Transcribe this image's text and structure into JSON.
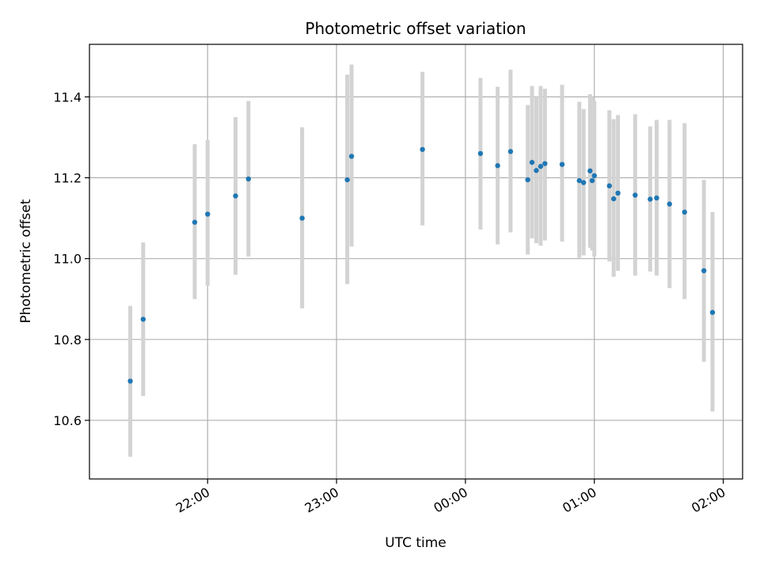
{
  "chart_data": {
    "type": "scatter",
    "title": "Photometric offset variation",
    "xlabel": "UTC time",
    "ylabel": "Photometric offset",
    "x_unit": "UTC time (HH:MM)",
    "xlim": [
      "21:05",
      "02:09"
    ],
    "ylim": [
      10.455,
      11.53
    ],
    "yticks": [
      10.6,
      10.8,
      11.0,
      11.2,
      11.4
    ],
    "ytick_labels": [
      "10.6",
      "10.8",
      "11.0",
      "11.2",
      "11.4"
    ],
    "xticks": [
      "22:00",
      "23:00",
      "00:00",
      "01:00",
      "02:00"
    ],
    "xtick_labels": [
      "22:00",
      "23:00",
      "00:00",
      "01:00",
      "02:00"
    ],
    "grid": true,
    "marker_color": "#1f77b4",
    "errorbar_color": "#d3d3d3",
    "points": [
      {
        "t": "21:24",
        "y": 10.697,
        "lo": 10.51,
        "hi": 10.883
      },
      {
        "t": "21:30",
        "y": 10.85,
        "lo": 10.66,
        "hi": 11.04
      },
      {
        "t": "21:54",
        "y": 11.09,
        "lo": 10.9,
        "hi": 11.283
      },
      {
        "t": "22:00",
        "y": 11.11,
        "lo": 10.933,
        "hi": 11.293
      },
      {
        "t": "22:13",
        "y": 11.155,
        "lo": 10.96,
        "hi": 11.35
      },
      {
        "t": "22:19",
        "y": 11.197,
        "lo": 11.005,
        "hi": 11.39
      },
      {
        "t": "22:44",
        "y": 11.1,
        "lo": 10.877,
        "hi": 11.325
      },
      {
        "t": "23:05",
        "y": 11.195,
        "lo": 10.937,
        "hi": 11.455
      },
      {
        "t": "23:07",
        "y": 11.253,
        "lo": 11.03,
        "hi": 11.48
      },
      {
        "t": "23:40",
        "y": 11.27,
        "lo": 11.082,
        "hi": 11.462
      },
      {
        "t": "00:07",
        "y": 11.26,
        "lo": 11.072,
        "hi": 11.447
      },
      {
        "t": "00:15",
        "y": 11.23,
        "lo": 11.035,
        "hi": 11.425
      },
      {
        "t": "00:21",
        "y": 11.265,
        "lo": 11.065,
        "hi": 11.467
      },
      {
        "t": "00:29",
        "y": 11.195,
        "lo": 11.01,
        "hi": 11.38
      },
      {
        "t": "00:31",
        "y": 11.238,
        "lo": 11.05,
        "hi": 11.427
      },
      {
        "t": "00:33",
        "y": 11.218,
        "lo": 11.038,
        "hi": 11.4
      },
      {
        "t": "00:35",
        "y": 11.228,
        "lo": 11.032,
        "hi": 11.427
      },
      {
        "t": "00:37",
        "y": 11.235,
        "lo": 11.045,
        "hi": 11.42
      },
      {
        "t": "00:45",
        "y": 11.233,
        "lo": 11.042,
        "hi": 11.43
      },
      {
        "t": "00:53",
        "y": 11.193,
        "lo": 11.002,
        "hi": 11.388
      },
      {
        "t": "00:55",
        "y": 11.188,
        "lo": 11.008,
        "hi": 11.37
      },
      {
        "t": "00:58",
        "y": 11.217,
        "lo": 11.027,
        "hi": 11.407
      },
      {
        "t": "00:59",
        "y": 11.193,
        "lo": 11.02,
        "hi": 11.4
      },
      {
        "t": "01:00",
        "y": 11.205,
        "lo": 11.005,
        "hi": 11.39
      },
      {
        "t": "01:07",
        "y": 11.18,
        "lo": 10.993,
        "hi": 11.367
      },
      {
        "t": "01:09",
        "y": 11.148,
        "lo": 10.955,
        "hi": 11.345
      },
      {
        "t": "01:11",
        "y": 11.162,
        "lo": 10.97,
        "hi": 11.355
      },
      {
        "t": "01:19",
        "y": 11.157,
        "lo": 10.958,
        "hi": 11.357
      },
      {
        "t": "01:26",
        "y": 11.147,
        "lo": 10.968,
        "hi": 11.327
      },
      {
        "t": "01:29",
        "y": 11.15,
        "lo": 10.958,
        "hi": 11.343
      },
      {
        "t": "01:35",
        "y": 11.135,
        "lo": 10.927,
        "hi": 11.343
      },
      {
        "t": "01:42",
        "y": 11.115,
        "lo": 10.9,
        "hi": 11.335
      },
      {
        "t": "01:51",
        "y": 10.97,
        "lo": 10.745,
        "hi": 11.195
      },
      {
        "t": "01:55",
        "y": 10.867,
        "lo": 10.622,
        "hi": 11.115
      }
    ]
  }
}
